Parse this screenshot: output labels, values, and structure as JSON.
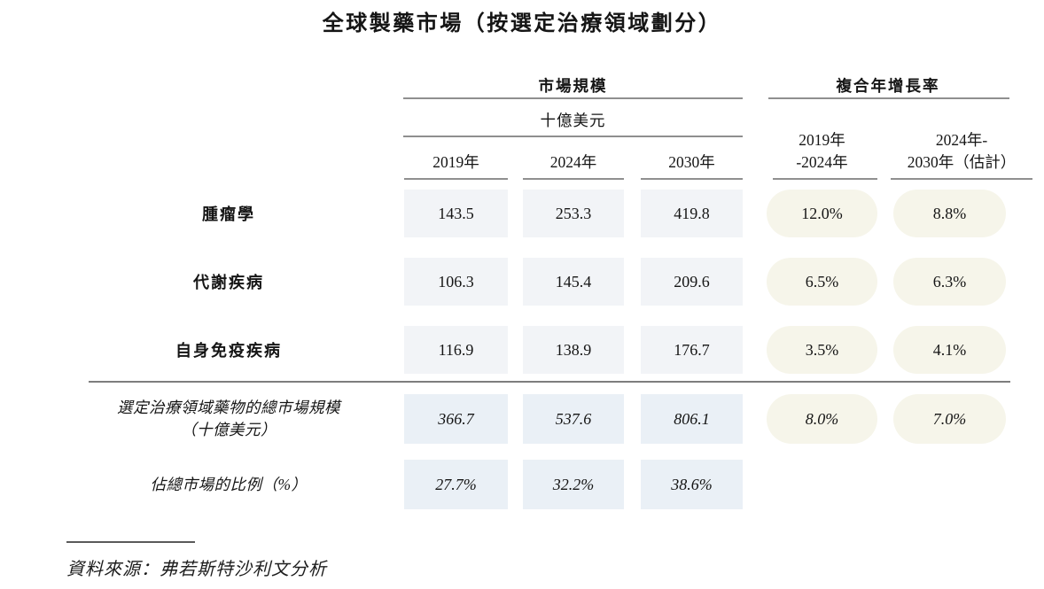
{
  "title": "全球製藥市場（按選定治療領域劃分）",
  "header": {
    "market_size_label": "市場規模",
    "unit_label": "十億美元",
    "cagr_label": "複合年增長率",
    "year_columns": [
      "2019年",
      "2024年",
      "2030年"
    ],
    "cagr_columns": [
      {
        "line1": "2019年",
        "line2": "-2024年"
      },
      {
        "line1": "2024年-",
        "line2": "2030年（估計）"
      }
    ]
  },
  "rows": [
    {
      "label": "腫瘤學",
      "values": [
        "143.5",
        "253.3",
        "419.8"
      ],
      "cagr": [
        "12.0%",
        "8.8%"
      ]
    },
    {
      "label": "代謝疾病",
      "values": [
        "106.3",
        "145.4",
        "209.6"
      ],
      "cagr": [
        "6.5%",
        "6.3%"
      ]
    },
    {
      "label": "自身免疫疾病",
      "values": [
        "116.9",
        "138.9",
        "176.7"
      ],
      "cagr": [
        "3.5%",
        "4.1%"
      ]
    }
  ],
  "summary_rows": [
    {
      "label_line1": "選定治療領域藥物的總市場規模",
      "label_line2": "（十億美元）",
      "values": [
        "366.7",
        "537.6",
        "806.1"
      ],
      "cagr": [
        "8.0%",
        "7.0%"
      ]
    },
    {
      "label_line1": "佔總市場的比例（%）",
      "label_line2": "",
      "values": [
        "27.7%",
        "32.2%",
        "38.6%"
      ],
      "cagr": []
    }
  ],
  "source": "資料來源：弗若斯特沙利文分析",
  "colors": {
    "value_cell_bg": "#f2f4f7",
    "summary_cell_bg": "#eaf0f6",
    "cagr_pill_bg": "#f6f5ea",
    "rule_gray": "#8f8f8f"
  },
  "chart_data": {
    "type": "table",
    "title": "全球製藥市場（按選定治療領域劃分）",
    "unit": "十億美元",
    "column_groups": [
      "市場規模",
      "複合年增長率"
    ],
    "columns": [
      "2019年",
      "2024年",
      "2030年",
      "2019年-2024年",
      "2024年-2030年（估計）"
    ],
    "rows": [
      {
        "label": "腫瘤學",
        "market_size": [
          143.5,
          253.3,
          419.8
        ],
        "cagr": [
          "12.0%",
          "8.8%"
        ]
      },
      {
        "label": "代謝疾病",
        "market_size": [
          106.3,
          145.4,
          209.6
        ],
        "cagr": [
          "6.5%",
          "6.3%"
        ]
      },
      {
        "label": "自身免疫疾病",
        "market_size": [
          116.9,
          138.9,
          176.7
        ],
        "cagr": [
          "3.5%",
          "4.1%"
        ]
      },
      {
        "label": "選定治療領域藥物的總市場規模（十億美元）",
        "market_size": [
          366.7,
          537.6,
          806.1
        ],
        "cagr": [
          "8.0%",
          "7.0%"
        ]
      },
      {
        "label": "佔總市場的比例（%）",
        "market_size": [
          "27.7%",
          "32.2%",
          "38.6%"
        ],
        "cagr": []
      }
    ],
    "source": "資料來源：弗若斯特沙利文分析"
  }
}
